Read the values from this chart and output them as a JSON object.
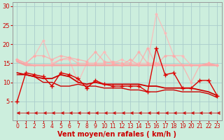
{
  "xlabel": "Vent moyen/en rafales ( km/h )",
  "bg_color": "#cceedd",
  "grid_color": "#aacccc",
  "xlim": [
    -0.5,
    23.5
  ],
  "ylim": [
    0,
    31
  ],
  "yticks": [
    5,
    10,
    15,
    20,
    25,
    30
  ],
  "xticks": [
    0,
    1,
    2,
    3,
    4,
    5,
    6,
    7,
    8,
    9,
    10,
    11,
    12,
    13,
    14,
    15,
    16,
    17,
    18,
    19,
    20,
    21,
    22,
    23
  ],
  "x": [
    0,
    1,
    2,
    3,
    4,
    5,
    6,
    7,
    8,
    9,
    10,
    11,
    12,
    13,
    14,
    15,
    16,
    17,
    18,
    19,
    20,
    21,
    22,
    23
  ],
  "lines": [
    {
      "y": [
        16,
        15,
        17,
        21,
        15,
        16,
        16,
        10,
        15,
        15,
        18,
        15,
        16,
        15,
        15,
        15,
        28,
        23,
        17,
        17,
        14.5,
        14.5,
        15,
        14.5
      ],
      "color": "#ffb8b8",
      "lw": 1.0,
      "marker": "D",
      "ms": 2.0,
      "mew": 0.5,
      "alpha": 0.8,
      "zorder": 1
    },
    {
      "y": [
        15.5,
        14.5,
        14.5,
        14.5,
        14.5,
        14.5,
        14.5,
        14.5,
        14.5,
        14.5,
        14.5,
        14.5,
        14.5,
        14.5,
        14.5,
        14.5,
        14.5,
        14.5,
        14.5,
        14.5,
        14.5,
        14.5,
        14.5,
        14.5
      ],
      "color": "#ff9999",
      "lw": 1.8,
      "marker": null,
      "ms": 0,
      "mew": 0,
      "alpha": 0.85,
      "zorder": 2
    },
    {
      "y": [
        16,
        15,
        17,
        17,
        16,
        17,
        16.5,
        16,
        15.5,
        18,
        15.5,
        15,
        14.5,
        16,
        14.5,
        19,
        14.5,
        17,
        17,
        14.5,
        14.5,
        14.5,
        15,
        14.5
      ],
      "color": "#ffaaaa",
      "lw": 1.0,
      "marker": "D",
      "ms": 2.0,
      "mew": 0.5,
      "alpha": 0.8,
      "zorder": 2
    },
    {
      "y": [
        16,
        15,
        14.5,
        14.5,
        14.5,
        16,
        16.5,
        15,
        15,
        15,
        15,
        15.5,
        15,
        15,
        18,
        15,
        15,
        14.5,
        14.5,
        14.5,
        10,
        14.5,
        15,
        14.5
      ],
      "color": "#ffaaaa",
      "lw": 1.0,
      "marker": "D",
      "ms": 2.0,
      "mew": 0.5,
      "alpha": 0.75,
      "zorder": 2
    },
    {
      "y": [
        12.5,
        12,
        11.5,
        11,
        11,
        12,
        11.5,
        10,
        9.5,
        10,
        9.5,
        9.5,
        9.5,
        9.5,
        9.5,
        9,
        9,
        8.5,
        8.5,
        8.5,
        8.5,
        8,
        7.5,
        6.5
      ],
      "color": "#cc0000",
      "lw": 1.3,
      "marker": null,
      "ms": 0,
      "mew": 0,
      "alpha": 1.0,
      "zorder": 4
    },
    {
      "y": [
        12,
        12,
        11.5,
        10,
        10,
        9,
        9,
        9.5,
        9,
        9,
        8.5,
        8.5,
        8.5,
        8,
        8,
        7.5,
        7.5,
        8,
        8,
        7.5,
        7.5,
        7.5,
        7,
        6
      ],
      "color": "#cc0000",
      "lw": 1.0,
      "marker": null,
      "ms": 0,
      "mew": 0,
      "alpha": 1.0,
      "zorder": 4
    },
    {
      "y": [
        5,
        12.5,
        12,
        11.5,
        9,
        12.5,
        12,
        11,
        8.5,
        10.5,
        9.5,
        9,
        9,
        9,
        9,
        7.5,
        19,
        12,
        12.5,
        8.5,
        8.5,
        10.5,
        10.5,
        6.5
      ],
      "color": "#dd0000",
      "lw": 1.0,
      "marker": "+",
      "ms": 4,
      "mew": 1.0,
      "alpha": 1.0,
      "zorder": 5
    },
    {
      "y": [
        2,
        2,
        2,
        2,
        2,
        2,
        2,
        2,
        2,
        2,
        2,
        2,
        2,
        2,
        2,
        2,
        2,
        2,
        2,
        2,
        2,
        2,
        2,
        2
      ],
      "color": "#cc0000",
      "lw": 0.7,
      "marker": 4,
      "ms": 3.5,
      "mew": 0.8,
      "alpha": 0.75,
      "zorder": 3
    }
  ]
}
